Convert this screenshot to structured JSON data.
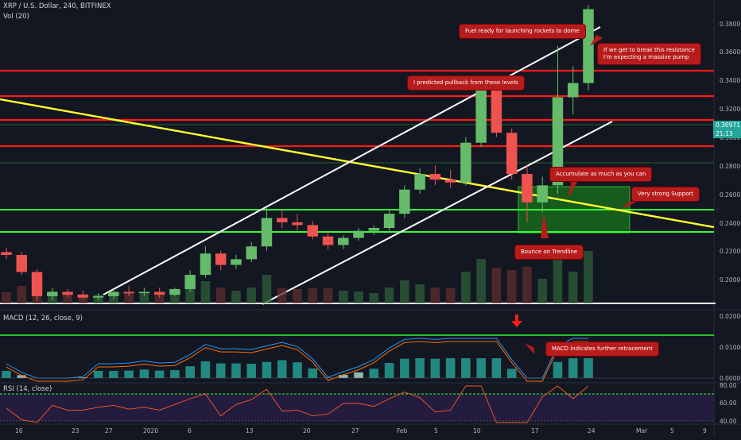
{
  "header": {
    "symbol_line": "XRP / U.S. Dollar, 240, BITFINEX",
    "volume_label": "Vol (20)"
  },
  "indicators": {
    "macd_label": "MACD (12, 26, close, 9)",
    "rsi_label": "RSI (14, close)"
  },
  "price_axis": {
    "labels": [
      "0.38000",
      "0.36000",
      "0.34000",
      "0.32000",
      "0.30000",
      "0.28000",
      "0.26000",
      "0.24000",
      "0.22000",
      "0.20000"
    ],
    "current_price": "0.30971",
    "countdown": "21:13"
  },
  "macd_axis": {
    "labels": [
      "0.02000",
      "0.01000",
      "0.00000"
    ]
  },
  "rsi_axis": {
    "labels": [
      "80.00",
      "60.00",
      "40.00"
    ]
  },
  "time_axis": {
    "labels": [
      "16",
      "23",
      "27",
      "2020",
      "6",
      "13",
      "20",
      "27",
      "Feb",
      "5",
      "10",
      "17",
      "24",
      "Mar",
      "5",
      "9"
    ]
  },
  "annotations": {
    "fuel": "Fuel ready for launching rockets to dome",
    "resistance": "If we get to break this resistance\nI'm expecting a massive pump",
    "pullback": "I predicted pullback from these levels",
    "accumulate": "Accumulate as much as you can",
    "support": "Very strong Support",
    "bounce": "Bounce on Trendline",
    "macd": "MACD indicates further retracement"
  },
  "colors": {
    "background": "#131722",
    "resistance_line": "#ff1a1a",
    "support_line": "#33ff33",
    "trendline": "#ffff33",
    "channel": "#ffffff",
    "bull_candle": "#66bb6a",
    "bear_candle": "#ef5350",
    "callout": "#b71c1c",
    "rsi_band": "#2a1f4a"
  },
  "chart_data": {
    "type": "candlestick",
    "ylim": [
      0.185,
      0.395
    ],
    "resistance_levels": [
      0.347,
      0.329,
      0.312,
      0.295
    ],
    "support_levels": [
      0.25,
      0.234
    ],
    "support_zone": [
      0.234,
      0.267
    ],
    "candles": [
      {
        "t": "Dec 13",
        "o": 0.221,
        "h": 0.224,
        "l": 0.216,
        "c": 0.219
      },
      {
        "t": "Dec 15",
        "o": 0.219,
        "h": 0.221,
        "l": 0.205,
        "c": 0.207
      },
      {
        "t": "Dec 17",
        "o": 0.207,
        "h": 0.209,
        "l": 0.187,
        "c": 0.19
      },
      {
        "t": "Dec 19",
        "o": 0.19,
        "h": 0.196,
        "l": 0.187,
        "c": 0.193
      },
      {
        "t": "Dec 21",
        "o": 0.193,
        "h": 0.195,
        "l": 0.189,
        "c": 0.191
      },
      {
        "t": "Dec 23",
        "o": 0.191,
        "h": 0.194,
        "l": 0.188,
        "c": 0.189
      },
      {
        "t": "Dec 25",
        "o": 0.189,
        "h": 0.192,
        "l": 0.187,
        "c": 0.19
      },
      {
        "t": "Dec 27",
        "o": 0.19,
        "h": 0.195,
        "l": 0.188,
        "c": 0.193
      },
      {
        "t": "Dec 29",
        "o": 0.193,
        "h": 0.197,
        "l": 0.19,
        "c": 0.192
      },
      {
        "t": "Dec 31",
        "o": 0.192,
        "h": 0.196,
        "l": 0.19,
        "c": 0.193
      },
      {
        "t": "Jan 2",
        "o": 0.193,
        "h": 0.196,
        "l": 0.189,
        "c": 0.191
      },
      {
        "t": "Jan 4",
        "o": 0.191,
        "h": 0.196,
        "l": 0.19,
        "c": 0.195
      },
      {
        "t": "Jan 6",
        "o": 0.195,
        "h": 0.208,
        "l": 0.193,
        "c": 0.205
      },
      {
        "t": "Jan 8",
        "o": 0.205,
        "h": 0.225,
        "l": 0.203,
        "c": 0.22
      },
      {
        "t": "Jan 10",
        "o": 0.22,
        "h": 0.222,
        "l": 0.208,
        "c": 0.212
      },
      {
        "t": "Jan 12",
        "o": 0.212,
        "h": 0.219,
        "l": 0.209,
        "c": 0.216
      },
      {
        "t": "Jan 14",
        "o": 0.216,
        "h": 0.228,
        "l": 0.214,
        "c": 0.225
      },
      {
        "t": "Jan 16",
        "o": 0.225,
        "h": 0.252,
        "l": 0.222,
        "c": 0.245
      },
      {
        "t": "Jan 18",
        "o": 0.245,
        "h": 0.251,
        "l": 0.238,
        "c": 0.242
      },
      {
        "t": "Jan 20",
        "o": 0.242,
        "h": 0.248,
        "l": 0.236,
        "c": 0.24
      },
      {
        "t": "Jan 22",
        "o": 0.24,
        "h": 0.243,
        "l": 0.23,
        "c": 0.232
      },
      {
        "t": "Jan 24",
        "o": 0.232,
        "h": 0.236,
        "l": 0.223,
        "c": 0.226
      },
      {
        "t": "Jan 26",
        "o": 0.226,
        "h": 0.233,
        "l": 0.223,
        "c": 0.231
      },
      {
        "t": "Jan 28",
        "o": 0.231,
        "h": 0.238,
        "l": 0.229,
        "c": 0.236
      },
      {
        "t": "Jan 30",
        "o": 0.236,
        "h": 0.24,
        "l": 0.233,
        "c": 0.238
      },
      {
        "t": "Feb 1",
        "o": 0.238,
        "h": 0.25,
        "l": 0.236,
        "c": 0.248
      },
      {
        "t": "Feb 3",
        "o": 0.248,
        "h": 0.268,
        "l": 0.245,
        "c": 0.265
      },
      {
        "t": "Feb 5",
        "o": 0.265,
        "h": 0.28,
        "l": 0.262,
        "c": 0.276
      },
      {
        "t": "Feb 7",
        "o": 0.276,
        "h": 0.282,
        "l": 0.268,
        "c": 0.272
      },
      {
        "t": "Feb 9",
        "o": 0.272,
        "h": 0.279,
        "l": 0.266,
        "c": 0.27
      },
      {
        "t": "Feb 11",
        "o": 0.27,
        "h": 0.302,
        "l": 0.268,
        "c": 0.298
      },
      {
        "t": "Feb 13",
        "o": 0.298,
        "h": 0.345,
        "l": 0.295,
        "c": 0.335
      },
      {
        "t": "Feb 15",
        "o": 0.335,
        "h": 0.341,
        "l": 0.302,
        "c": 0.305
      },
      {
        "t": "Feb 17",
        "o": 0.305,
        "h": 0.308,
        "l": 0.272,
        "c": 0.276
      },
      {
        "t": "Feb 19",
        "o": 0.276,
        "h": 0.282,
        "l": 0.242,
        "c": 0.256
      },
      {
        "t": "Feb 21",
        "o": 0.256,
        "h": 0.274,
        "l": 0.249,
        "c": 0.268
      },
      {
        "t": "Feb 23",
        "o": 0.268,
        "h": 0.366,
        "l": 0.262,
        "c": 0.33
      },
      {
        "t": "Feb 25",
        "o": 0.33,
        "h": 0.352,
        "l": 0.318,
        "c": 0.34
      },
      {
        "t": "Feb 26",
        "o": 0.34,
        "h": 0.395,
        "l": 0.335,
        "c": 0.392
      }
    ]
  }
}
